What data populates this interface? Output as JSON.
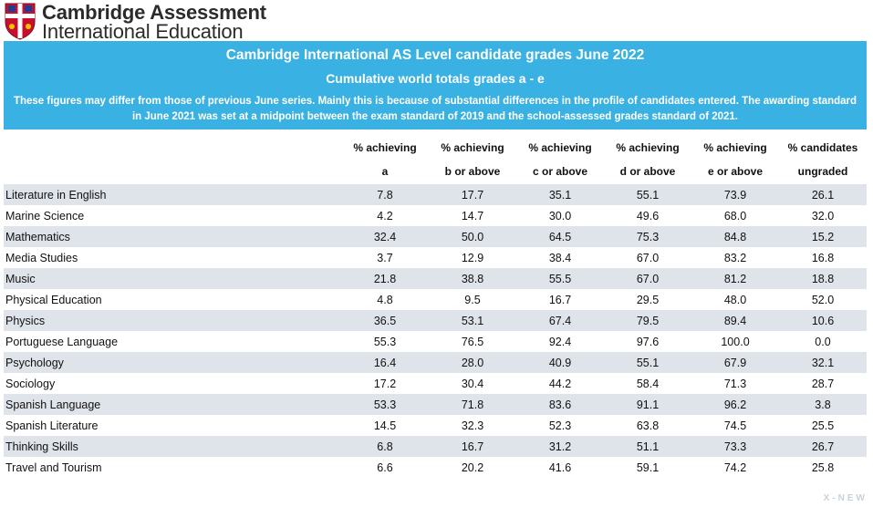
{
  "header": {
    "org_line1": "Cambridge Assessment",
    "org_line2": "International Education"
  },
  "banner": {
    "title": "Cambridge International AS Level candidate grades June 2022",
    "subtitle": "Cumulative world totals grades a - e",
    "note": "These figures may differ from those of previous June series. Mainly this is because of substantial differences in the profile of candidates entered. The awarding standard in June 2021 was set at a midpoint between the exam standard of 2019 and the school-assessed grades standard of 2021."
  },
  "table": {
    "columns": [
      {
        "line1": "% achieving",
        "line2": "a"
      },
      {
        "line1": "% achieving",
        "line2": "b or above"
      },
      {
        "line1": "% achieving",
        "line2": "c or above"
      },
      {
        "line1": "% achieving",
        "line2": "d or above"
      },
      {
        "line1": "% achieving",
        "line2": "e or above"
      },
      {
        "line1": "% candidates",
        "line2": "ungraded"
      }
    ],
    "rows": [
      {
        "subject": "Literature in English",
        "values": [
          "7.8",
          "17.7",
          "35.1",
          "55.1",
          "73.9",
          "26.1"
        ]
      },
      {
        "subject": "Marine Science",
        "values": [
          "4.2",
          "14.7",
          "30.0",
          "49.6",
          "68.0",
          "32.0"
        ]
      },
      {
        "subject": "Mathematics",
        "values": [
          "32.4",
          "50.0",
          "64.5",
          "75.3",
          "84.8",
          "15.2"
        ]
      },
      {
        "subject": "Media Studies",
        "values": [
          "3.7",
          "12.9",
          "38.4",
          "67.0",
          "83.2",
          "16.8"
        ]
      },
      {
        "subject": "Music",
        "values": [
          "21.8",
          "38.8",
          "55.5",
          "67.0",
          "81.2",
          "18.8"
        ]
      },
      {
        "subject": "Physical Education",
        "values": [
          "4.8",
          "9.5",
          "16.7",
          "29.5",
          "48.0",
          "52.0"
        ]
      },
      {
        "subject": "Physics",
        "values": [
          "36.5",
          "53.1",
          "67.4",
          "79.5",
          "89.4",
          "10.6"
        ]
      },
      {
        "subject": "Portuguese Language",
        "values": [
          "55.3",
          "76.5",
          "92.4",
          "97.6",
          "100.0",
          "0.0"
        ]
      },
      {
        "subject": "Psychology",
        "values": [
          "16.4",
          "28.0",
          "40.9",
          "55.1",
          "67.9",
          "32.1"
        ]
      },
      {
        "subject": "Sociology",
        "values": [
          "17.2",
          "30.4",
          "44.2",
          "58.4",
          "71.3",
          "28.7"
        ]
      },
      {
        "subject": "Spanish Language",
        "values": [
          "53.3",
          "71.8",
          "83.6",
          "91.1",
          "96.2",
          "3.8"
        ]
      },
      {
        "subject": "Spanish Literature",
        "values": [
          "14.5",
          "32.3",
          "52.3",
          "63.8",
          "74.5",
          "25.5"
        ]
      },
      {
        "subject": "Thinking Skills",
        "values": [
          "6.8",
          "16.7",
          "31.2",
          "51.1",
          "73.3",
          "26.7"
        ]
      },
      {
        "subject": "Travel and Tourism",
        "values": [
          "6.6",
          "20.2",
          "41.6",
          "59.1",
          "74.2",
          "25.8"
        ]
      }
    ]
  },
  "watermark": "X-NEW",
  "colors": {
    "banner_bg": "#3ab1e3",
    "row_shade": "#dfe3ea",
    "crest_red": "#c8102e",
    "crest_blue": "#1c3f94"
  }
}
